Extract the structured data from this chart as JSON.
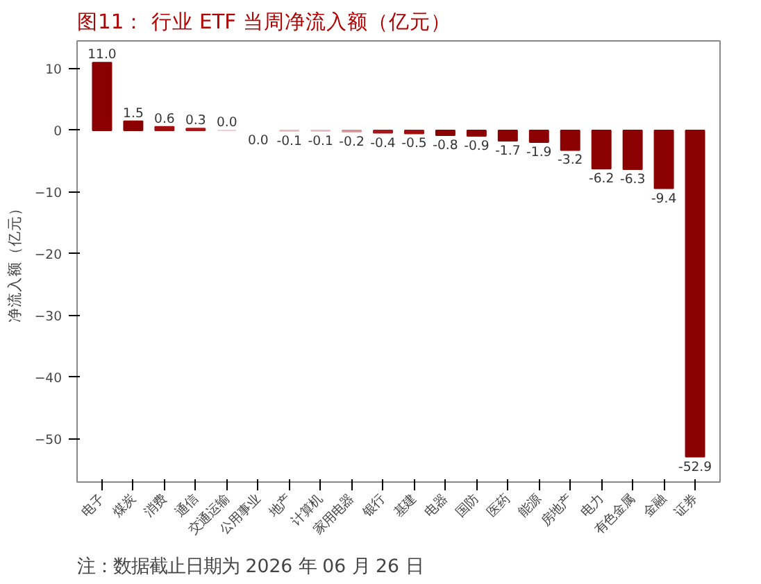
{
  "chart_data": {
    "type": "bar",
    "title": "图11：  行业 ETF 当周净流入额（亿元）",
    "ylabel": "净流入额（亿元）",
    "categories": [
      "电子",
      "煤炭",
      "消费",
      "通信",
      "交通运输",
      "公用事业",
      "地产",
      "计算机",
      "家用电器",
      "银行",
      "基建",
      "电器",
      "国防",
      "医药",
      "能源",
      "房地产",
      "电力",
      "有色金属",
      "金融",
      "证券"
    ],
    "values": [
      11.0,
      1.5,
      0.6,
      0.3,
      0.0,
      -0.0,
      -0.1,
      -0.1,
      -0.2,
      -0.4,
      -0.5,
      -0.8,
      -0.9,
      -1.7,
      -1.9,
      -3.2,
      -6.2,
      -6.3,
      -9.4,
      -52.9
    ],
    "colors": [
      "#8b0000",
      "#8b0000",
      "#a01010",
      "#a81818",
      "#f0d0d0",
      "#ffffff",
      "#e8b8b8",
      "#e8b8b8",
      "#d89090",
      "#a81818",
      "#a01010",
      "#8b0000",
      "#8b0000",
      "#8b0000",
      "#8b0000",
      "#8b0000",
      "#8b0000",
      "#8b0000",
      "#8b0000",
      "#8b0000"
    ],
    "value_labels": [
      "11.0",
      "1.5",
      "0.6",
      "0.3",
      "0.0",
      "0.0",
      "-0.1",
      "-0.1",
      "-0.2",
      "-0.4",
      "-0.5",
      "-0.8",
      "-0.9",
      "-1.7",
      "-1.9",
      "-3.2",
      "-6.2",
      "-6.3",
      "-9.4",
      "-52.9"
    ],
    "ylim": [
      -57,
      14.5
    ],
    "yticks": [
      -50,
      -40,
      -30,
      -20,
      -10,
      0,
      10
    ],
    "grid": false,
    "annotations": [
      "注：数据截止日期为 2026 年 06 月 26 日"
    ]
  }
}
